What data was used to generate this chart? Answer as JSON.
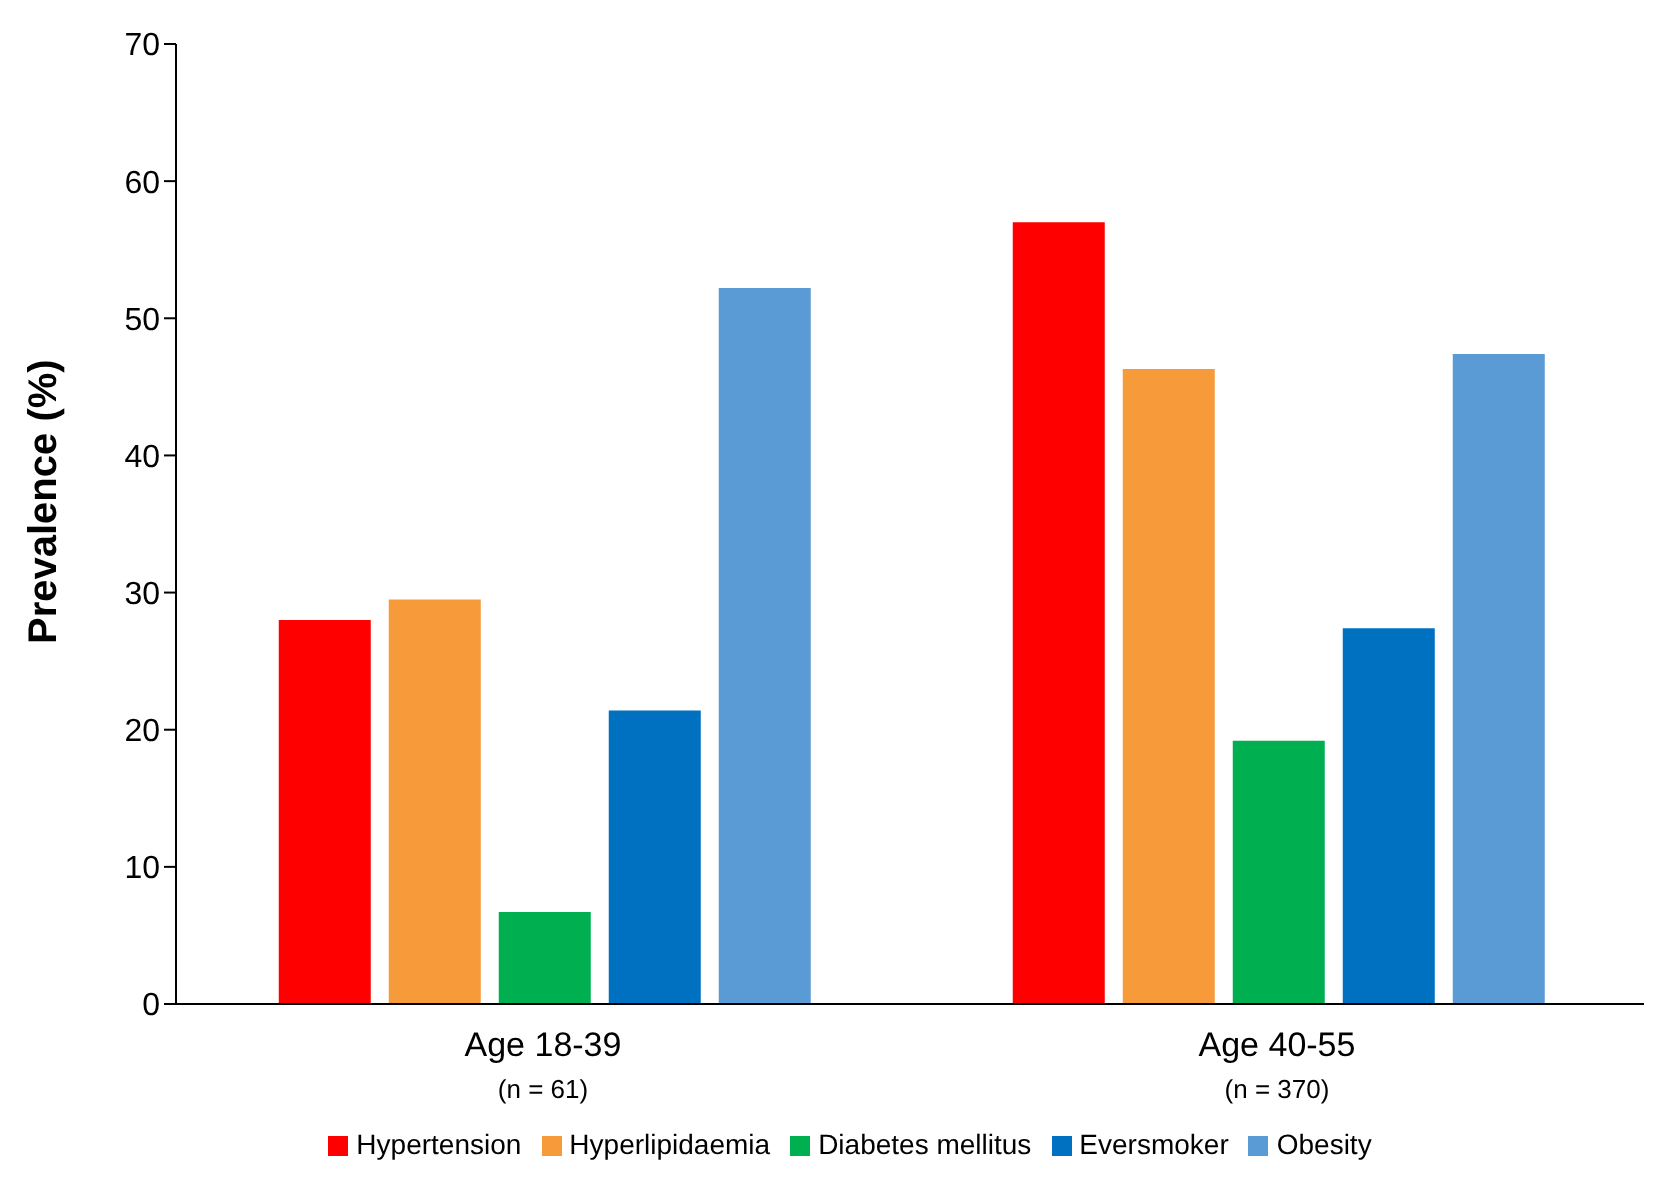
{
  "chart_data": {
    "type": "bar",
    "ylabel": "Prevalence (%)",
    "categories": [
      "Age 18-39\n(n = 61)",
      "Age 40-55\n(n = 370)"
    ],
    "series": [
      {
        "name": "Hypertension",
        "color": "#ff0000",
        "values": [
          28.0,
          57.0
        ]
      },
      {
        "name": "Hyperlipidaemia",
        "color": "#f79a3a",
        "values": [
          29.5,
          46.3
        ]
      },
      {
        "name": "Diabetes mellitus",
        "color": "#00b050",
        "values": [
          6.7,
          19.2
        ]
      },
      {
        "name": "Eversmoker",
        "color": "#0070c0",
        "values": [
          21.4,
          27.4
        ]
      },
      {
        "name": "Obesity",
        "color": "#5b9bd5",
        "values": [
          52.2,
          47.4
        ]
      }
    ],
    "ylim": [
      0,
      70
    ],
    "yticks": [
      0,
      10,
      20,
      30,
      40,
      50,
      60,
      70
    ],
    "grid": false,
    "legend": "bottom"
  }
}
